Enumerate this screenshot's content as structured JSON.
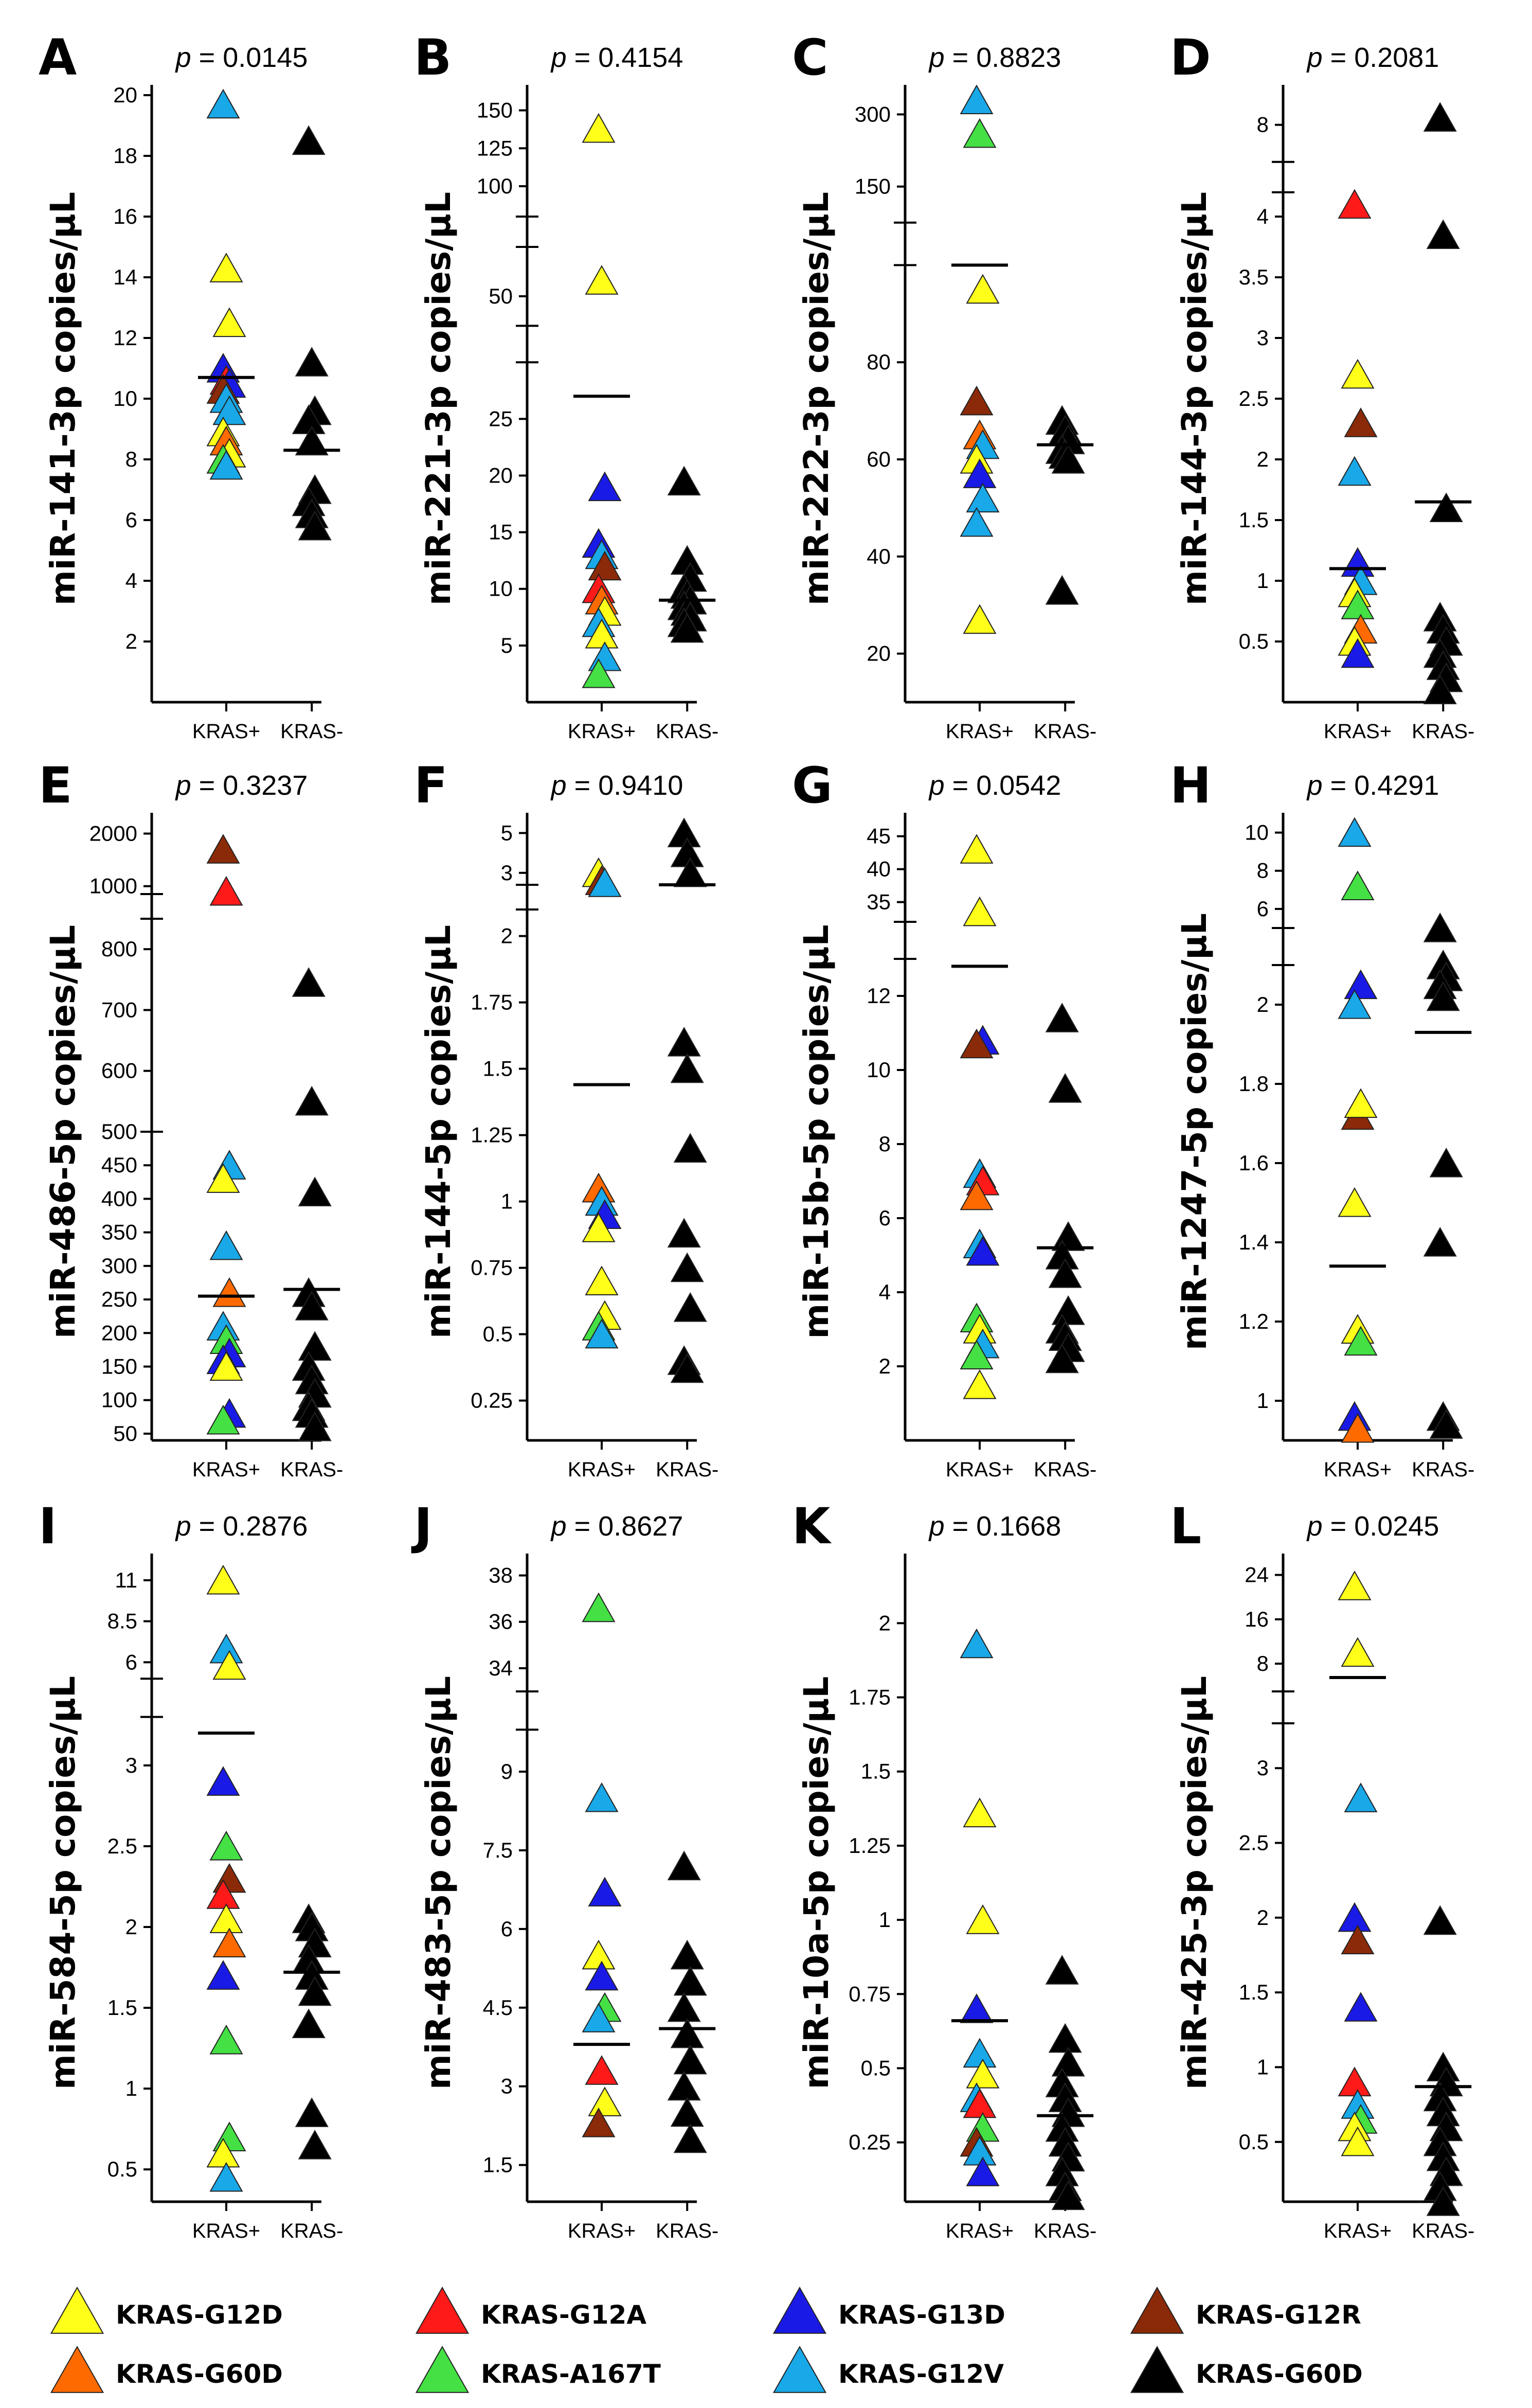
{
  "figure": {
    "x_categories": [
      "KRAS+",
      "KRAS-"
    ]
  },
  "colors": {
    "KRAS-G12D": "#ffff1a",
    "KRAS-G60D": "#ff6a00",
    "KRAS-G12A": "#ff1a1a",
    "KRAS-A167T": "#44e044",
    "KRAS-G13D": "#1a1ae6",
    "KRAS-G12V": "#19a8e8",
    "KRAS-G12R": "#8b2a08",
    "KRAS-G60D-neg": "#000000"
  },
  "legend": [
    {
      "label": "KRAS-G12D",
      "color": "#ffff1a"
    },
    {
      "label": "KRAS-G12A",
      "color": "#ff1a1a"
    },
    {
      "label": "KRAS-G13D",
      "color": "#1a1ae6"
    },
    {
      "label": "KRAS-G12R",
      "color": "#8b2a08"
    },
    {
      "label": "KRAS-G60D",
      "color": "#ff6a00"
    },
    {
      "label": "KRAS-A167T",
      "color": "#44e044"
    },
    {
      "label": "KRAS-G12V",
      "color": "#19a8e8"
    },
    {
      "label": "KRAS-G60D",
      "color": "#000000"
    }
  ],
  "chart_data": [
    {
      "type": "scatter",
      "panel": "A",
      "p_prefix": "p",
      "p_value": "= 0.0145",
      "ylabel": "miR-141-3p copies/μL",
      "ticks": [
        2,
        4,
        6,
        8,
        10,
        12,
        14,
        16,
        18,
        20
      ],
      "ylim": [
        0,
        20
      ],
      "mean_pos": 10.7,
      "mean_neg": 8.3,
      "pos": [
        [
          "G12V",
          19.7
        ],
        [
          "G12D",
          14.3
        ],
        [
          "G12D",
          12.5
        ],
        [
          "G13D",
          11.0
        ],
        [
          "G12A",
          10.6
        ],
        [
          "G13D",
          10.5
        ],
        [
          "G12R",
          10.3
        ],
        [
          "G12V",
          10.0
        ],
        [
          "G12V",
          9.6
        ],
        [
          "G12D",
          8.9
        ],
        [
          "G60D",
          8.6
        ],
        [
          "G12D",
          8.2
        ],
        [
          "A167T",
          8.0
        ],
        [
          "G12V",
          7.8
        ]
      ],
      "neg": [
        18.5,
        11.2,
        9.6,
        9.3,
        8.6,
        7.0,
        6.6,
        6.2,
        5.8
      ]
    },
    {
      "type": "scatter",
      "panel": "B",
      "p_prefix": "p",
      "p_value": "= 0.4154",
      "ylabel": "miR-221-3p copies/μL",
      "ticks": [
        5,
        10,
        15,
        20,
        25,
        50,
        100,
        125,
        150
      ],
      "segments": [
        {
          "lo": 0,
          "hi": 30,
          "p0": 0,
          "p1": 0.56
        },
        {
          "lo": 35,
          "hi": 75,
          "p0": 0.62,
          "p1": 0.75
        },
        {
          "lo": 80,
          "hi": 160,
          "p0": 0.8,
          "p1": 1.0
        }
      ],
      "mean_pos": 27,
      "mean_neg": 9,
      "pos": [
        [
          "G12D",
          138
        ],
        [
          "G12D",
          58
        ],
        [
          "G13D",
          19
        ],
        [
          "G13D",
          14
        ],
        [
          "G12V",
          13
        ],
        [
          "G12R",
          12
        ],
        [
          "G12A",
          10
        ],
        [
          "G60D",
          9
        ],
        [
          "G12D",
          8
        ],
        [
          "G12V",
          7
        ],
        [
          "G12D",
          6
        ],
        [
          "G12V",
          4
        ],
        [
          "A167T",
          2.5
        ]
      ],
      "neg": [
        19.5,
        12.5,
        11,
        10,
        9.5,
        9,
        8.5,
        8,
        7.5,
        7,
        6.5
      ]
    },
    {
      "type": "scatter",
      "panel": "C",
      "p_prefix": "p",
      "p_value": "= 0.8823",
      "ylabel": "miR-222-3p copies/μL",
      "ticks": [
        20,
        40,
        60,
        80,
        150,
        300
      ],
      "segments": [
        {
          "lo": 10,
          "hi": 100,
          "p0": 0,
          "p1": 0.72
        },
        {
          "lo": 75,
          "hi": 340,
          "p0": 0.79,
          "p1": 1.0
        }
      ],
      "mean_pos": 100,
      "mean_neg": 63,
      "pos": [
        [
          "G12V",
          330
        ],
        [
          "A167T",
          260
        ],
        [
          "G12D",
          95
        ],
        [
          "G12R",
          72
        ],
        [
          "G60D",
          65
        ],
        [
          "G12V",
          63
        ],
        [
          "G12D",
          60
        ],
        [
          "G13D",
          57
        ],
        [
          "G12V",
          52
        ],
        [
          "G12V",
          47
        ],
        [
          "G12D",
          27
        ]
      ],
      "neg": [
        68,
        66,
        64,
        62,
        61,
        60,
        33
      ]
    },
    {
      "type": "scatter",
      "panel": "D",
      "p_prefix": "p",
      "p_value": "= 0.2081",
      "ylabel": "miR-144-3p copies/μL",
      "ticks": [
        0.5,
        1.0,
        1.5,
        2.0,
        2.5,
        3.0,
        3.5,
        4.0,
        8.0
      ],
      "segments": [
        {
          "lo": 0,
          "hi": 4.2,
          "p0": 0,
          "p1": 0.84
        },
        {
          "lo": 7.0,
          "hi": 8.8,
          "p0": 0.89,
          "p1": 1.0
        }
      ],
      "mean_pos": 1.1,
      "mean_neg": 1.65,
      "pos": [
        [
          "G12A",
          4.1
        ],
        [
          "G12D",
          2.7
        ],
        [
          "G12R",
          2.3
        ],
        [
          "G12V",
          1.9
        ],
        [
          "G13D",
          1.15
        ],
        [
          "G12V",
          1.0
        ],
        [
          "G12D",
          0.9
        ],
        [
          "A167T",
          0.8
        ],
        [
          "G60D",
          0.6
        ],
        [
          "G12D",
          0.5
        ],
        [
          "G13D",
          0.4
        ]
      ],
      "neg": [
        8.2,
        3.85,
        1.6,
        0.7,
        0.6,
        0.5,
        0.4,
        0.3,
        0.2,
        0.1
      ]
    },
    {
      "type": "scatter",
      "panel": "E",
      "p_prefix": "p",
      "p_value": "= 0.3237",
      "ylabel": "miR-486-5p copies/μL",
      "ticks": [
        50,
        100,
        150,
        200,
        250,
        300,
        350,
        400,
        450,
        500,
        600,
        700,
        800,
        1000,
        2000
      ],
      "segments": [
        {
          "lo": 40,
          "hi": 500,
          "p0": 0,
          "p1": 0.5
        },
        {
          "lo": 500,
          "hi": 850,
          "p0": 0.5,
          "p1": 0.845
        },
        {
          "lo": 850,
          "hi": 2200,
          "p0": 0.885,
          "p1": 1.0
        }
      ],
      "mean_pos": 255,
      "mean_neg": 265,
      "pos": [
        [
          "G12R",
          1700
        ],
        [
          "G12A",
          900
        ],
        [
          "G12V",
          450
        ],
        [
          "G12D",
          430
        ],
        [
          "G12V",
          330
        ],
        [
          "G60D",
          260
        ],
        [
          "G12V",
          210
        ],
        [
          "A167T",
          190
        ],
        [
          "G13D",
          170
        ],
        [
          "G13D",
          160
        ],
        [
          "G12D",
          150
        ],
        [
          "G13D",
          80
        ],
        [
          "A167T",
          70
        ]
      ],
      "neg": [
        745,
        550,
        410,
        260,
        240,
        180,
        150,
        130,
        110,
        90,
        80,
        60
      ]
    },
    {
      "type": "scatter",
      "panel": "F",
      "p_prefix": "p",
      "p_value": "= 0.9410",
      "ylabel": "miR-144-5p copies/μL",
      "ticks": [
        0.25,
        0.5,
        0.75,
        1.0,
        1.25,
        1.5,
        1.75,
        2.0,
        3.0,
        5.0
      ],
      "segments": [
        {
          "lo": 0.1,
          "hi": 2.1,
          "p0": 0,
          "p1": 0.86
        },
        {
          "lo": 2.4,
          "hi": 5.5,
          "p0": 0.9,
          "p1": 1.0
        }
      ],
      "mean_pos": 1.44,
      "mean_neg": 2.3,
      "pos": [
        [
          "G12D",
          3.0
        ],
        [
          "G12R",
          2.6
        ],
        [
          "G12V",
          2.5
        ],
        [
          "G60D",
          1.05
        ],
        [
          "G12V",
          1.0
        ],
        [
          "G13D",
          0.95
        ],
        [
          "G12D",
          0.9
        ],
        [
          "G12D",
          0.7
        ],
        [
          "G12D",
          0.57
        ],
        [
          "A167T",
          0.53
        ],
        [
          "G12V",
          0.5
        ]
      ],
      "neg": [
        5.0,
        4.0,
        3.0,
        1.6,
        1.5,
        1.2,
        0.88,
        0.75,
        0.6,
        0.4,
        0.37
      ]
    },
    {
      "type": "scatter",
      "panel": "G",
      "p_prefix": "p",
      "p_value": "= 0.0542",
      "ylabel": "miR-15b-5p copies/μL",
      "ticks": [
        2,
        4,
        6,
        8,
        10,
        12,
        35,
        40,
        45
      ],
      "segments": [
        {
          "lo": 0,
          "hi": 13,
          "p0": 0,
          "p1": 0.78
        },
        {
          "lo": 32,
          "hi": 47,
          "p0": 0.84,
          "p1": 1.0
        }
      ],
      "mean_pos": 12.8,
      "mean_neg": 5.2,
      "pos": [
        [
          "G12D",
          43
        ],
        [
          "G12D",
          33.5
        ],
        [
          "G13D",
          10.8
        ],
        [
          "G12R",
          10.7
        ],
        [
          "G12V",
          7.2
        ],
        [
          "G12A",
          7.0
        ],
        [
          "G60D",
          6.6
        ],
        [
          "G12V",
          5.3
        ],
        [
          "G13D",
          5.1
        ],
        [
          "A167T",
          3.3
        ],
        [
          "G12D",
          3.0
        ],
        [
          "G12V",
          2.6
        ],
        [
          "A167T",
          2.3
        ],
        [
          "G12D",
          1.5
        ]
      ],
      "neg": [
        11.4,
        9.5,
        5.5,
        5.0,
        4.5,
        3.5,
        3.0,
        2.8,
        2.5,
        2.2
      ]
    },
    {
      "type": "scatter",
      "panel": "H",
      "p_prefix": "p",
      "p_value": "= 0.4291",
      "ylabel": "miR-1247-5p copies/μL",
      "ticks": [
        1.0,
        1.2,
        1.4,
        1.6,
        1.8,
        2.0,
        6.0,
        8.0,
        10.0
      ],
      "segments": [
        {
          "lo": 0.9,
          "hi": 2.1,
          "p0": 0,
          "p1": 0.77
        },
        {
          "lo": 5.0,
          "hi": 10.5,
          "p0": 0.83,
          "p1": 1.0
        }
      ],
      "mean_pos": 1.34,
      "mean_neg": 1.93,
      "pos": [
        [
          "G12V",
          10.0
        ],
        [
          "A167T",
          7.2
        ],
        [
          "G13D",
          2.05
        ],
        [
          "G12V",
          2.0
        ],
        [
          "G12R",
          1.72
        ],
        [
          "G12D",
          1.75
        ],
        [
          "G12D",
          1.5
        ],
        [
          "G12D",
          1.18
        ],
        [
          "A167T",
          1.15
        ],
        [
          "G13D",
          0.96
        ],
        [
          "G60D",
          0.93
        ]
      ],
      "neg": [
        5.0,
        2.1,
        2.07,
        2.05,
        2.02,
        1.6,
        1.4,
        0.96,
        0.94
      ]
    },
    {
      "type": "scatter",
      "panel": "I",
      "p_prefix": "p",
      "p_value": "= 0.2876",
      "ylabel": "miR-584-5p copies/μL",
      "ticks": [
        0.5,
        1.0,
        1.5,
        2.0,
        2.5,
        3.0,
        6.0,
        8.5,
        11.0
      ],
      "segments": [
        {
          "lo": 0.3,
          "hi": 3.3,
          "p0": 0,
          "p1": 0.76
        },
        {
          "lo": 5.0,
          "hi": 12.0,
          "p0": 0.82,
          "p1": 1.0
        }
      ],
      "mean_pos": 3.2,
      "mean_neg": 1.72,
      "pos": [
        [
          "G12D",
          11.0
        ],
        [
          "G12V",
          6.8
        ],
        [
          "G12D",
          5.8
        ],
        [
          "G13D",
          2.9
        ],
        [
          "A167T",
          2.5
        ],
        [
          "G12R",
          2.3
        ],
        [
          "G12A",
          2.2
        ],
        [
          "G12D",
          2.05
        ],
        [
          "G60D",
          1.9
        ],
        [
          "G13D",
          1.7
        ],
        [
          "A167T",
          1.3
        ],
        [
          "A167T",
          0.7
        ],
        [
          "G12D",
          0.6
        ],
        [
          "G12V",
          0.45
        ]
      ],
      "neg": [
        2.05,
        2.0,
        1.9,
        1.8,
        1.7,
        1.6,
        1.4,
        0.85,
        0.65
      ]
    },
    {
      "type": "scatter",
      "panel": "J",
      "p_prefix": "p",
      "p_value": "= 0.8627",
      "ylabel": "miR-483-5p copies/μL",
      "ticks": [
        1.5,
        3.0,
        4.5,
        6.0,
        7.5,
        9.0,
        34,
        36,
        38
      ],
      "segments": [
        {
          "lo": 0.8,
          "hi": 9.8,
          "p0": 0,
          "p1": 0.74
        },
        {
          "lo": 33,
          "hi": 38.5,
          "p0": 0.8,
          "p1": 1.0
        }
      ],
      "mean_pos": 3.8,
      "mean_neg": 4.1,
      "pos": [
        [
          "A167T",
          36.6
        ],
        [
          "G12V",
          8.5
        ],
        [
          "G13D",
          6.7
        ],
        [
          "G12D",
          5.5
        ],
        [
          "G13D",
          5.1
        ],
        [
          "A167T",
          4.5
        ],
        [
          "G12V",
          4.3
        ],
        [
          "G12A",
          3.3
        ],
        [
          "G12D",
          2.7
        ],
        [
          "G12R",
          2.3
        ]
      ],
      "neg": [
        7.2,
        5.5,
        5.0,
        4.5,
        4.0,
        3.5,
        3.0,
        2.5,
        2.0
      ]
    },
    {
      "type": "scatter",
      "panel": "K",
      "p_prefix": "p",
      "p_value": "= 0.1668",
      "ylabel": "miR-10a-5p copies/μL",
      "ticks": [
        0.25,
        0.5,
        0.75,
        1.0,
        1.25,
        1.5,
        1.75,
        2.0
      ],
      "ylim": [
        0.05,
        2.2
      ],
      "mean_pos": 0.66,
      "mean_neg": 0.34,
      "pos": [
        [
          "G12V",
          1.93
        ],
        [
          "G12D",
          1.36
        ],
        [
          "G12D",
          1.0
        ],
        [
          "G13D",
          0.7
        ],
        [
          "G12V",
          0.55
        ],
        [
          "G12D",
          0.48
        ],
        [
          "G12V",
          0.4
        ],
        [
          "G12A",
          0.38
        ],
        [
          "A167T",
          0.3
        ],
        [
          "G12R",
          0.25
        ],
        [
          "G12V",
          0.22
        ],
        [
          "G13D",
          0.15
        ]
      ],
      "neg": [
        0.83,
        0.6,
        0.52,
        0.45,
        0.4,
        0.35,
        0.3,
        0.25,
        0.2,
        0.15,
        0.1,
        0.07
      ]
    },
    {
      "type": "scatter",
      "panel": "L",
      "p_prefix": "p",
      "p_value": "= 0.0245",
      "ylabel": "miR-425-3p copies/μL",
      "ticks": [
        0.5,
        1.0,
        1.5,
        2.0,
        2.5,
        3.0,
        8,
        16,
        24
      ],
      "segments": [
        {
          "lo": 0.1,
          "hi": 3.3,
          "p0": 0,
          "p1": 0.75
        },
        {
          "lo": 3.0,
          "hi": 26,
          "p0": 0.8,
          "p1": 1.0
        }
      ],
      "mean_pos": 5.5,
      "mean_neg": 0.87,
      "pos": [
        [
          "G12D",
          22
        ],
        [
          "G12D",
          10
        ],
        [
          "G12V",
          2.8
        ],
        [
          "G13D",
          2.0
        ],
        [
          "G12R",
          1.85
        ],
        [
          "G13D",
          1.4
        ],
        [
          "G12A",
          0.9
        ],
        [
          "G12V",
          0.75
        ],
        [
          "A167T",
          0.65
        ],
        [
          "G12D",
          0.6
        ],
        [
          "G12D",
          0.5
        ]
      ],
      "neg": [
        1.98,
        1.0,
        0.9,
        0.8,
        0.7,
        0.6,
        0.5,
        0.4,
        0.3,
        0.2,
        0.1
      ]
    }
  ]
}
